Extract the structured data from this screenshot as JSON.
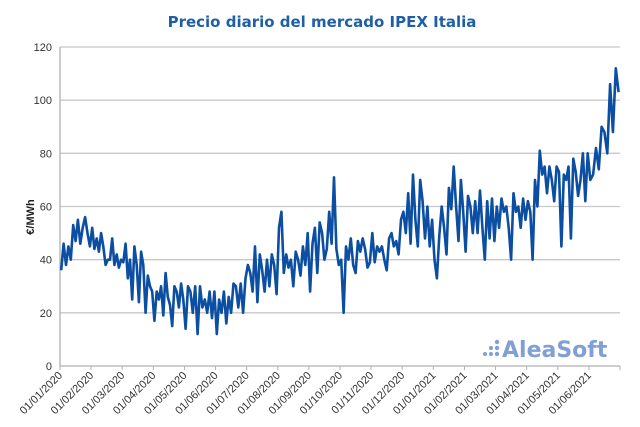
{
  "chart_data": {
    "type": "line",
    "title": "Precio diario del mercado IPEX Italia",
    "xlabel": "",
    "ylabel": "€/MWh",
    "ylim": [
      0,
      120
    ],
    "yticks": [
      0,
      20,
      40,
      60,
      80,
      100,
      120
    ],
    "xticks": [
      "01/01/2020",
      "01/02/2020",
      "01/03/2020",
      "01/04/2020",
      "01/05/2020",
      "01/06/2020",
      "01/07/2020",
      "01/08/2020",
      "01/09/2020",
      "01/10/2020",
      "01/11/2020",
      "01/12/2020",
      "01/01/2021",
      "01/02/2021",
      "01/03/2021",
      "01/04/2021",
      "01/05/2021",
      "01/06/2021"
    ],
    "grid": "horizontal",
    "legend": "none",
    "line_color": "#0b4ea2",
    "series": [
      {
        "by_month": [
          {
            "month": "01/2020",
            "values": [
              36,
              46,
              38,
              45,
              40,
              53,
              47,
              55,
              46,
              52,
              56,
              50,
              45
            ]
          },
          {
            "month": "02/2020",
            "values": [
              52,
              44,
              48,
              43,
              50,
              45,
              38,
              40,
              40,
              48,
              38,
              42,
              37,
              40
            ]
          },
          {
            "month": "03/2020",
            "values": [
              39,
              46,
              33,
              40,
              25,
              45,
              38,
              24,
              43,
              38,
              20,
              34,
              30,
              28
            ]
          },
          {
            "month": "04/2020",
            "values": [
              17,
              28,
              25,
              30,
              19,
              35,
              26,
              23,
              15,
              30,
              28,
              22,
              31,
              25
            ]
          },
          {
            "month": "05/2020",
            "values": [
              14,
              30,
              28,
              20,
              30,
              12,
              30,
              22,
              25,
              20,
              28,
              18,
              28
            ]
          },
          {
            "month": "06/2020",
            "values": [
              12,
              25,
              20,
              28,
              16,
              26,
              20,
              31,
              30,
              22,
              31,
              20,
              33
            ]
          },
          {
            "month": "07/2020",
            "values": [
              38,
              35,
              28,
              45,
              24,
              42,
              36,
              28,
              40,
              30,
              42,
              38,
              27
            ]
          },
          {
            "month": "08/2020",
            "values": [
              52,
              58,
              35,
              42,
              37,
              40,
              30,
              43,
              40,
              34,
              45,
              38,
              50
            ]
          },
          {
            "month": "09/2020",
            "values": [
              28,
              46,
              52,
              35,
              54,
              50,
              40,
              44,
              58,
              46,
              71,
              44,
              38
            ]
          },
          {
            "month": "10/2020",
            "values": [
              40,
              20,
              45,
              40,
              48,
              38,
              35,
              47,
              43,
              48,
              44,
              37,
              39
            ]
          },
          {
            "month": "11/2020",
            "values": [
              50,
              39,
              45,
              43,
              45,
              40,
              36,
              48,
              50,
              45,
              47,
              42,
              55
            ]
          },
          {
            "month": "12/2020",
            "values": [
              58,
              50,
              65,
              46,
              72,
              55,
              45,
              70,
              62,
              48,
              60,
              45,
              55
            ]
          },
          {
            "month": "01/2021",
            "values": [
              40,
              33,
              49,
              60,
              52,
              42,
              67,
              59,
              75,
              60,
              47,
              70,
              58
            ]
          },
          {
            "month": "02/2021",
            "values": [
              43,
              64,
              60,
              50,
              62,
              50,
              66,
              52,
              40,
              62,
              48,
              63,
              47
            ]
          },
          {
            "month": "03/2021",
            "values": [
              60,
              52,
              63,
              58,
              60,
              52,
              40,
              65,
              58,
              60,
              52,
              63,
              55
            ]
          },
          {
            "month": "04/2021",
            "values": [
              62,
              58,
              40,
              70,
              60,
              81,
              72,
              75,
              65,
              75,
              70,
              62,
              75
            ]
          },
          {
            "month": "05/2021",
            "values": [
              73,
              45,
              72,
              70,
              75,
              48,
              78,
              73,
              64,
              70,
              80,
              62,
              80
            ]
          },
          {
            "month": "06/2021",
            "values": [
              70,
              72,
              82,
              74,
              90,
              88,
              80,
              106,
              88,
              112,
              103
            ]
          }
        ]
      }
    ]
  },
  "logo": {
    "text": "AleaSoft"
  }
}
